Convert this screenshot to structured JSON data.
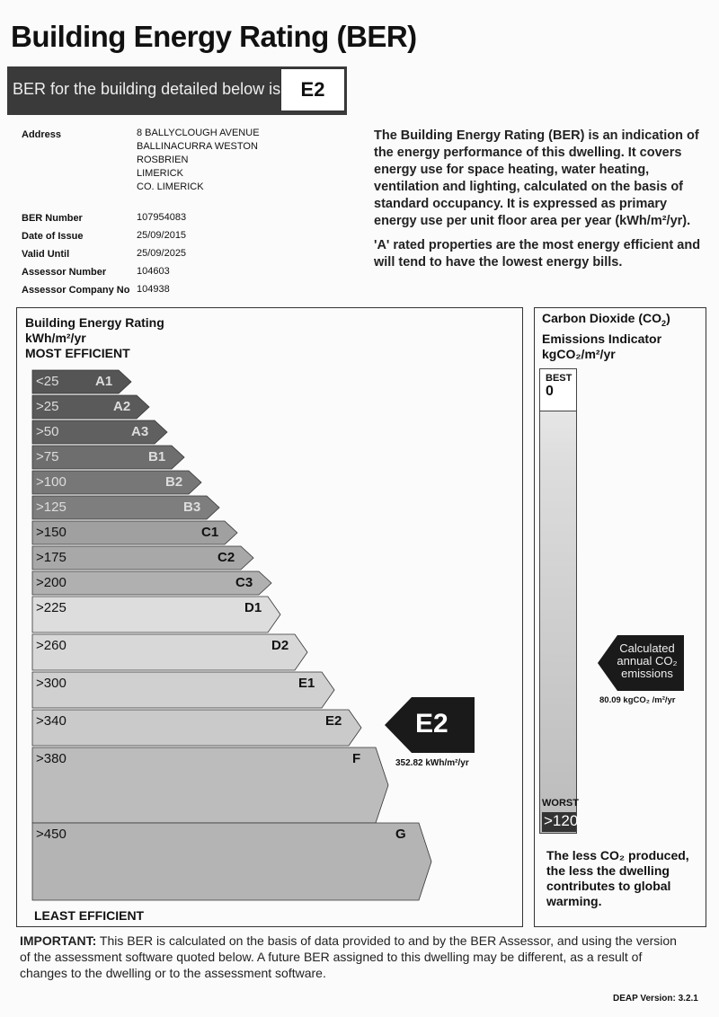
{
  "title": "Building Energy Rating (BER)",
  "banner": {
    "text": "BER for the building detailed below is:",
    "rating": "E2"
  },
  "details": {
    "address_label": "Address",
    "address_lines": [
      "8 BALLYCLOUGH AVENUE",
      "BALLINACURRA WESTON",
      "ROSBRIEN",
      "LIMERICK",
      "CO. LIMERICK"
    ],
    "fields": [
      {
        "label": "BER Number",
        "value": "107954083"
      },
      {
        "label": "Date of Issue",
        "value": "25/09/2015"
      },
      {
        "label": "Valid Until",
        "value": "25/09/2025"
      },
      {
        "label": "Assessor Number",
        "value": "104603"
      },
      {
        "label": "Assessor Company No",
        "value": "104938"
      }
    ]
  },
  "intro": [
    "The Building Energy Rating (BER) is an indication of the energy performance of this dwelling. It covers energy use for space heating, water heating, ventilation and lighting, calculated on the basis of standard occupancy. It is expressed as primary energy use per unit floor area per year (kWh/m²/yr).",
    "'A' rated properties are the most energy efficient and will tend to have the lowest energy bills."
  ],
  "scale": {
    "heading1": "Building Energy Rating",
    "heading2": "kWh/m²/yr",
    "heading3": "MOST EFFICIENT",
    "footer": "LEAST EFFICIENT",
    "bands": [
      {
        "range": "<25",
        "grade": "A1",
        "color": "#555555"
      },
      {
        "range": ">25",
        "grade": "A2",
        "color": "#5a5a5a"
      },
      {
        "range": ">50",
        "grade": "A3",
        "color": "#606060"
      },
      {
        "range": ">75",
        "grade": "B1",
        "color": "#6e6e6e"
      },
      {
        "range": ">100",
        "grade": "B2",
        "color": "#777777"
      },
      {
        "range": ">125",
        "grade": "B3",
        "color": "#7e7e7e"
      },
      {
        "range": ">150",
        "grade": "C1",
        "color": "#a0a0a0"
      },
      {
        "range": ">175",
        "grade": "C2",
        "color": "#a8a8a8"
      },
      {
        "range": ">200",
        "grade": "C3",
        "color": "#b0b0b0"
      },
      {
        "range": ">225",
        "grade": "D1",
        "color": "#dddddd"
      },
      {
        "range": ">260",
        "grade": "D2",
        "color": "#d8d8d8"
      },
      {
        "range": ">300",
        "grade": "E1",
        "color": "#d0d0d0"
      },
      {
        "range": ">340",
        "grade": "E2",
        "color": "#cacaca"
      },
      {
        "range": ">380",
        "grade": "F",
        "color": "#bcbcbc"
      },
      {
        "range": ">450",
        "grade": "G",
        "color": "#b4b4b4"
      }
    ],
    "result_grade": "E2",
    "result_value": "352.82 kWh/m²/yr"
  },
  "co2": {
    "heading1": "Carbon Dioxide (CO",
    "heading1_sub": "2",
    "heading1_end": ")",
    "heading2": "Emissions Indicator",
    "heading3": "kgCO₂/m²/yr",
    "best_label": "BEST",
    "best_value": "0",
    "worst_label": "WORST",
    "worst_value": ">120",
    "arrow_lines": [
      "Calculated",
      "annual CO₂",
      "emissions"
    ],
    "value": "80.09 kgCO₂ /m²/yr",
    "note": "The less CO₂ produced, the less the dwelling contributes to global warming."
  },
  "important": {
    "label": "IMPORTANT:",
    "text": " This BER is calculated on the basis of data provided to and by the BER Assessor, and using the version of the assessment software quoted below. A future BER assigned to this dwelling may be different, as a result of changes to the dwelling or to the assessment software."
  },
  "version": "DEAP Version: 3.2.1"
}
